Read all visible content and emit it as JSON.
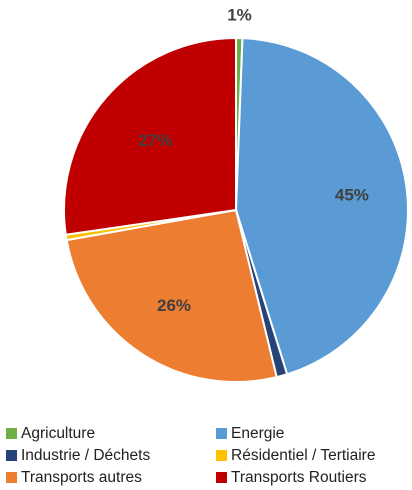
{
  "chart_data": {
    "type": "pie",
    "series": [
      {
        "name": "Agriculture",
        "value": 0.6,
        "label": "1%",
        "color": "#70AD47"
      },
      {
        "name": "Energie",
        "value": 44.6,
        "label": "45%",
        "color": "#5B9BD5"
      },
      {
        "name": "Industrie / Déchets",
        "value": 1.0,
        "label": "1%",
        "color": "#264478"
      },
      {
        "name": "Transports autres",
        "value": 26.0,
        "label": "26%",
        "color": "#ED7D31"
      },
      {
        "name": "Résidentiel / Tertiaire",
        "value": 0.5,
        "label": "",
        "color": "#FFC000"
      },
      {
        "name": "Transports Routiers",
        "value": 27.3,
        "label": "27%",
        "color": "#C00000"
      }
    ],
    "legend_order": [
      "Agriculture",
      "Energie",
      "Industrie / Déchets",
      "Résidentiel / Tertiaire",
      "Transports autres",
      "Transports Routiers"
    ],
    "legend_position": "bottom"
  }
}
